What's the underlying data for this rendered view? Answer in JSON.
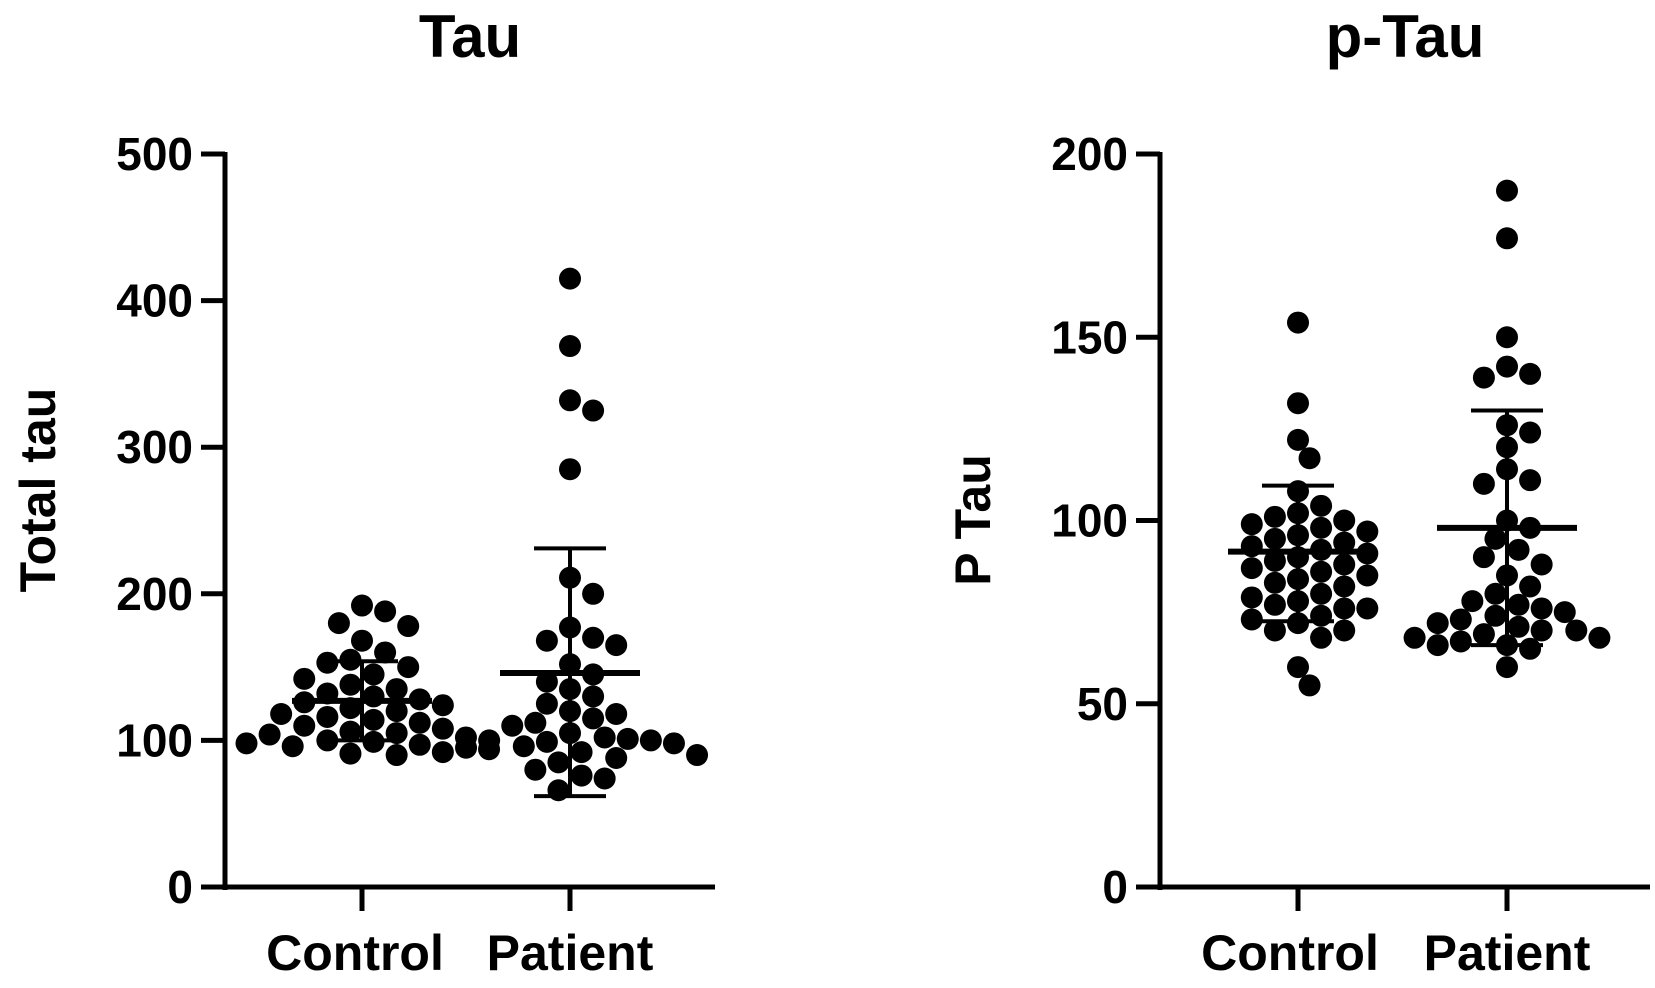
{
  "colors": {
    "points": "#000000",
    "axes": "#000000",
    "background": "#ffffff"
  },
  "chart_data": [
    {
      "type": "scatter",
      "title": "Tau",
      "xlabel": "",
      "ylabel": "Total tau",
      "ylim": [
        0,
        500
      ],
      "yticks": [
        "0",
        "100",
        "200",
        "300",
        "400",
        "500"
      ],
      "categories": [
        "Control",
        "Patient"
      ],
      "grid": false,
      "series": [
        {
          "category": "Control",
          "mean": 127,
          "sd_upper": 154,
          "sd_lower": 100,
          "values": [
            192,
            188,
            180,
            178,
            168,
            160,
            155,
            153,
            150,
            145,
            142,
            138,
            135,
            132,
            130,
            128,
            126,
            124,
            122,
            120,
            118,
            116,
            114,
            112,
            110,
            108,
            106,
            105,
            104,
            102,
            100,
            99,
            98,
            97,
            96,
            94,
            92,
            91,
            90
          ]
        },
        {
          "category": "Patient",
          "mean": 146,
          "sd_upper": 231,
          "sd_lower": 62,
          "values": [
            415,
            369,
            332,
            325,
            285,
            211,
            200,
            177,
            170,
            168,
            165,
            152,
            145,
            140,
            135,
            130,
            125,
            120,
            118,
            115,
            112,
            110,
            105,
            102,
            101,
            100,
            100,
            99,
            98,
            96,
            95,
            92,
            90,
            88,
            85,
            80,
            76,
            74,
            66
          ]
        }
      ]
    },
    {
      "type": "scatter",
      "title": "p-Tau",
      "xlabel": "",
      "ylabel": "P Tau",
      "ylim": [
        0,
        200
      ],
      "yticks": [
        "0",
        "50",
        "100",
        "150",
        "200"
      ],
      "categories": [
        "Control",
        "Patient"
      ],
      "grid": false,
      "series": [
        {
          "category": "Control",
          "mean": 91.5,
          "sd_upper": 109.5,
          "sd_lower": 72.5,
          "values": [
            154,
            132,
            122,
            117,
            108,
            104,
            102,
            101,
            100,
            99,
            98,
            97,
            96,
            95,
            94,
            93,
            92,
            91,
            90,
            89,
            88,
            87,
            86,
            85,
            84,
            83,
            82,
            80,
            79,
            78,
            77,
            76,
            76,
            74,
            73,
            72,
            70,
            70,
            68,
            60,
            55
          ]
        },
        {
          "category": "Patient",
          "mean": 98,
          "sd_upper": 130,
          "sd_lower": 66,
          "values": [
            190,
            177,
            150,
            142,
            140,
            139,
            126,
            124,
            120,
            114,
            111,
            110,
            100,
            98,
            95,
            92,
            90,
            88,
            85,
            82,
            80,
            78,
            77,
            76,
            75,
            74,
            73,
            72,
            71,
            70,
            70,
            69,
            68,
            68,
            67,
            66,
            66,
            65,
            60
          ]
        }
      ]
    }
  ]
}
